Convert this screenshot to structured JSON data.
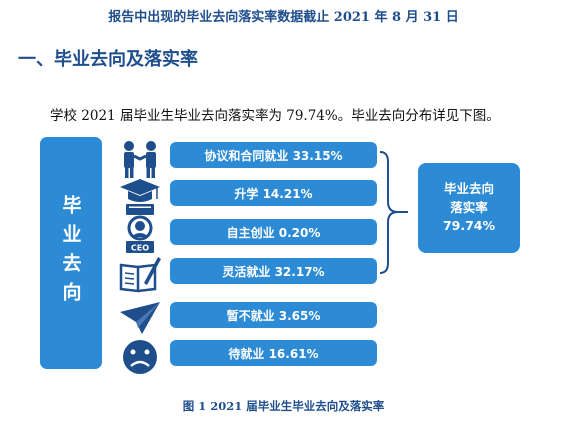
{
  "header_note": "报告中出现的毕业去向落实率数据截止 2021 年 8 月 31 日",
  "section_title": "一、毕业去向及落实率",
  "summary_text": "学校 2021 届毕业生毕业去向落实率为 79.74%。毕业去向分布详见下图。",
  "diagram": {
    "side_label": "毕业去向",
    "items": [
      {
        "label": "协议和合同就业 33.15%",
        "icon": "handshake-people-icon"
      },
      {
        "label": "升学 14.21%",
        "icon": "graduation-cap-icon"
      },
      {
        "label": "自主创业 0.20%",
        "icon": "ceo-person-icon"
      },
      {
        "label": "灵活就业 32.17%",
        "icon": "book-pen-icon"
      },
      {
        "label": "暂不就业 3.65%",
        "icon": "paper-plane-icon"
      },
      {
        "label": "待就业 16.61%",
        "icon": "sad-face-icon"
      }
    ],
    "total": {
      "line1": "毕业去向",
      "line2": "落实率",
      "value": "79.74%"
    },
    "accent_color": "#2d8bd6",
    "icon_color": "#1f4e8c"
  },
  "caption": "图 1    2021 届毕业生毕业去向及落实率"
}
